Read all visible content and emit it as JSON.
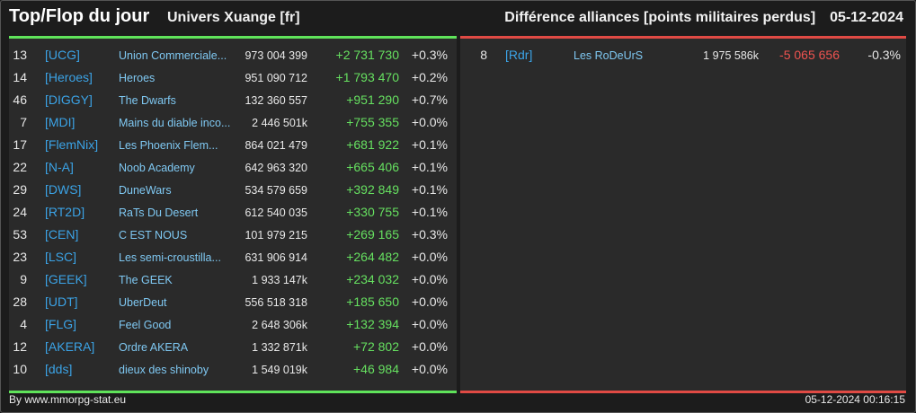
{
  "header": {
    "title": "Top/Flop du jour",
    "universe": "Univers Xuange [fr]",
    "category": "Différence alliances [points militaires perdus]",
    "date": "05-12-2024"
  },
  "top": [
    {
      "rank": "13",
      "tag": "[UCG]",
      "name": "Union Commerciale...",
      "points": "973 004 399",
      "diff": "+2 731 730",
      "pct": "+0.3%"
    },
    {
      "rank": "14",
      "tag": "[Heroes]",
      "name": "Heroes",
      "points": "951 090 712",
      "diff": "+1 793 470",
      "pct": "+0.2%"
    },
    {
      "rank": "46",
      "tag": "[DIGGY]",
      "name": "The Dwarfs",
      "points": "132 360 557",
      "diff": "+951 290",
      "pct": "+0.7%"
    },
    {
      "rank": "7",
      "tag": "[MDI]",
      "name": "Mains du diable inco...",
      "points": "2 446 501k",
      "diff": "+755 355",
      "pct": "+0.0%"
    },
    {
      "rank": "17",
      "tag": "[FlemNix]",
      "name": "Les Phoenix Flem...",
      "points": "864 021 479",
      "diff": "+681 922",
      "pct": "+0.1%"
    },
    {
      "rank": "22",
      "tag": "[N-A]",
      "name": "Noob Academy",
      "points": "642 963 320",
      "diff": "+665 406",
      "pct": "+0.1%"
    },
    {
      "rank": "29",
      "tag": "[DWS]",
      "name": "DuneWars",
      "points": "534 579 659",
      "diff": "+392 849",
      "pct": "+0.1%"
    },
    {
      "rank": "24",
      "tag": "[RT2D]",
      "name": "RaTs Du Desert",
      "points": "612 540 035",
      "diff": "+330 755",
      "pct": "+0.1%"
    },
    {
      "rank": "53",
      "tag": "[CEN]",
      "name": "C EST NOUS",
      "points": "101 979 215",
      "diff": "+269 165",
      "pct": "+0.3%"
    },
    {
      "rank": "23",
      "tag": "[LSC]",
      "name": "Les semi-croustilla...",
      "points": "631 906 914",
      "diff": "+264 482",
      "pct": "+0.0%"
    },
    {
      "rank": "9",
      "tag": "[GEEK]",
      "name": "The GEEK",
      "points": "1 933 147k",
      "diff": "+234 032",
      "pct": "+0.0%"
    },
    {
      "rank": "28",
      "tag": "[UDT]",
      "name": "UberDeut",
      "points": "556 518 318",
      "diff": "+185 650",
      "pct": "+0.0%"
    },
    {
      "rank": "4",
      "tag": "[FLG]",
      "name": "Feel Good",
      "points": "2 648 306k",
      "diff": "+132 394",
      "pct": "+0.0%"
    },
    {
      "rank": "12",
      "tag": "[AKERA]",
      "name": "Ordre AKERA",
      "points": "1 332 871k",
      "diff": "+72 802",
      "pct": "+0.0%"
    },
    {
      "rank": "10",
      "tag": "[dds]",
      "name": "dieux des shinoby",
      "points": "1 549 019k",
      "diff": "+46 984",
      "pct": "+0.0%"
    }
  ],
  "flop": [
    {
      "rank": "8",
      "tag": "[Rdr]",
      "name": "Les RoDeUrS",
      "points": "1 975 586k",
      "diff": "-5 065 656",
      "pct": "-0.3%"
    }
  ],
  "footer": {
    "credit": "By www.mmorpg-stat.eu",
    "timestamp": "05-12-2024 00:16:15"
  },
  "colors": {
    "top_accent": "#5fe35a",
    "flop_accent": "#e04a44",
    "tag": "#3ba3e6",
    "name": "#7fc8f2"
  }
}
